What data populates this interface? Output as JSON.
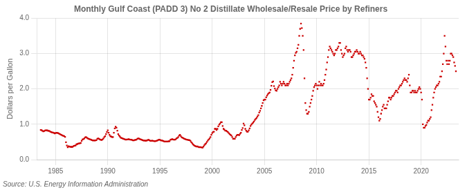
{
  "chart_data": {
    "type": "scatter",
    "title": "Monthly Gulf Coast (PADD 3) No 2 Distillate Wholesale/Resale Price by Refiners",
    "y_label": "Dollars per Gallon",
    "annotation": "Source: U.S. Energy Information Administration",
    "color": "#cc0000",
    "marker": "square",
    "grid": true,
    "xlim": [
      1983.2,
      2023.6
    ],
    "xticks": [
      1985,
      1990,
      1995,
      2000,
      2005,
      2010,
      2015,
      2020
    ],
    "ylim": [
      0.0,
      4.0
    ],
    "yticks": [
      {
        "value": 0.0,
        "label": "0.0"
      },
      {
        "value": 1.0,
        "label": "1.0"
      },
      {
        "value": 2.0,
        "label": "2.0"
      },
      {
        "value": 3.0,
        "label": "3.0"
      },
      {
        "value": 4.0,
        "label": "4.0"
      }
    ],
    "x": [
      1983.583,
      1983.667,
      1983.75,
      1983.833,
      1983.917,
      1984.0,
      1984.083,
      1984.167,
      1984.25,
      1984.333,
      1984.417,
      1984.5,
      1984.583,
      1984.667,
      1984.75,
      1984.833,
      1984.917,
      1985.0,
      1985.083,
      1985.167,
      1985.25,
      1985.333,
      1985.417,
      1985.5,
      1985.583,
      1985.667,
      1985.75,
      1985.833,
      1985.917,
      1986.0,
      1986.083,
      1986.167,
      1986.25,
      1986.333,
      1986.417,
      1986.5,
      1986.583,
      1986.667,
      1986.75,
      1986.833,
      1986.917,
      1987.0,
      1987.083,
      1987.167,
      1987.25,
      1987.333,
      1987.417,
      1987.5,
      1987.583,
      1987.667,
      1987.75,
      1987.833,
      1987.917,
      1988.0,
      1988.083,
      1988.167,
      1988.25,
      1988.333,
      1988.417,
      1988.5,
      1988.583,
      1988.667,
      1988.75,
      1988.833,
      1988.917,
      1989.0,
      1989.083,
      1989.167,
      1989.25,
      1989.333,
      1989.417,
      1989.5,
      1989.583,
      1989.667,
      1989.75,
      1989.833,
      1989.917,
      1990.0,
      1990.083,
      1990.167,
      1990.25,
      1990.333,
      1990.417,
      1990.5,
      1990.583,
      1990.667,
      1990.75,
      1990.833,
      1990.917,
      1991.0,
      1991.083,
      1991.167,
      1991.25,
      1991.333,
      1991.417,
      1991.5,
      1991.583,
      1991.667,
      1991.75,
      1991.833,
      1991.917,
      1992.0,
      1992.083,
      1992.167,
      1992.25,
      1992.333,
      1992.417,
      1992.5,
      1992.583,
      1992.667,
      1992.75,
      1992.833,
      1992.917,
      1993.0,
      1993.083,
      1993.167,
      1993.25,
      1993.333,
      1993.417,
      1993.5,
      1993.583,
      1993.667,
      1993.75,
      1993.833,
      1993.917,
      1994.0,
      1994.083,
      1994.167,
      1994.25,
      1994.333,
      1994.417,
      1994.5,
      1994.583,
      1994.667,
      1994.75,
      1994.833,
      1994.917,
      1995.0,
      1995.083,
      1995.167,
      1995.25,
      1995.333,
      1995.417,
      1995.5,
      1995.583,
      1995.667,
      1995.75,
      1995.833,
      1995.917,
      1996.0,
      1996.083,
      1996.167,
      1996.25,
      1996.333,
      1996.417,
      1996.5,
      1996.583,
      1996.667,
      1996.75,
      1996.833,
      1996.917,
      1997.0,
      1997.083,
      1997.167,
      1997.25,
      1997.333,
      1997.417,
      1997.5,
      1997.583,
      1997.667,
      1997.75,
      1997.833,
      1997.917,
      1998.0,
      1998.083,
      1998.167,
      1998.25,
      1998.333,
      1998.417,
      1998.5,
      1998.583,
      1998.667,
      1998.75,
      1998.833,
      1998.917,
      1999.0,
      1999.083,
      1999.167,
      1999.25,
      1999.333,
      1999.417,
      1999.5,
      1999.583,
      1999.667,
      1999.75,
      1999.833,
      1999.917,
      2000.0,
      2000.083,
      2000.167,
      2000.25,
      2000.333,
      2000.417,
      2000.5,
      2000.583,
      2000.667,
      2000.75,
      2000.833,
      2000.917,
      2001.0,
      2001.083,
      2001.167,
      2001.25,
      2001.333,
      2001.417,
      2001.5,
      2001.583,
      2001.667,
      2001.75,
      2001.833,
      2001.917,
      2002.0,
      2002.083,
      2002.167,
      2002.25,
      2002.333,
      2002.417,
      2002.5,
      2002.583,
      2002.667,
      2002.75,
      2002.833,
      2002.917,
      2003.0,
      2003.083,
      2003.167,
      2003.25,
      2003.333,
      2003.417,
      2003.5,
      2003.583,
      2003.667,
      2003.75,
      2003.833,
      2003.917,
      2004.0,
      2004.083,
      2004.167,
      2004.25,
      2004.333,
      2004.417,
      2004.5,
      2004.583,
      2004.667,
      2004.75,
      2004.833,
      2004.917,
      2005.0,
      2005.083,
      2005.167,
      2005.25,
      2005.333,
      2005.417,
      2005.5,
      2005.583,
      2005.667,
      2005.75,
      2005.833,
      2005.917,
      2006.0,
      2006.083,
      2006.167,
      2006.25,
      2006.333,
      2006.417,
      2006.5,
      2006.583,
      2006.667,
      2006.75,
      2006.833,
      2006.917,
      2007.0,
      2007.083,
      2007.167,
      2007.25,
      2007.333,
      2007.417,
      2007.5,
      2007.583,
      2007.667,
      2007.75,
      2007.833,
      2007.917,
      2008.0,
      2008.083,
      2008.167,
      2008.25,
      2008.333,
      2008.417,
      2008.5,
      2008.583,
      2008.667,
      2008.75,
      2008.833,
      2008.917,
      2009.0,
      2009.083,
      2009.167,
      2009.25,
      2009.333,
      2009.417,
      2009.5,
      2009.583,
      2009.667,
      2009.75,
      2009.833,
      2009.917,
      2010.0,
      2010.083,
      2010.167,
      2010.25,
      2010.333,
      2010.417,
      2010.5,
      2010.583,
      2010.667,
      2010.75,
      2010.833,
      2010.917,
      2011.0,
      2011.083,
      2011.167,
      2011.25,
      2011.333,
      2011.417,
      2011.5,
      2011.583,
      2011.667,
      2011.75,
      2011.833,
      2011.917,
      2012.0,
      2012.083,
      2012.167,
      2012.25,
      2012.333,
      2012.417,
      2012.5,
      2012.583,
      2012.667,
      2012.75,
      2012.833,
      2012.917,
      2013.0,
      2013.083,
      2013.167,
      2013.25,
      2013.333,
      2013.417,
      2013.5,
      2013.583,
      2013.667,
      2013.75,
      2013.833,
      2013.917,
      2014.0,
      2014.083,
      2014.167,
      2014.25,
      2014.333,
      2014.417,
      2014.5,
      2014.583,
      2014.667,
      2014.75,
      2014.833,
      2014.917,
      2015.0,
      2015.083,
      2015.167,
      2015.25,
      2015.333,
      2015.417,
      2015.5,
      2015.583,
      2015.667,
      2015.75,
      2015.833,
      2015.917,
      2016.0,
      2016.083,
      2016.167,
      2016.25,
      2016.333,
      2016.417,
      2016.5,
      2016.583,
      2016.667,
      2016.75,
      2016.833,
      2016.917,
      2017.0,
      2017.083,
      2017.167,
      2017.25,
      2017.333,
      2017.417,
      2017.5,
      2017.583,
      2017.667,
      2017.75,
      2017.833,
      2017.917,
      2018.0,
      2018.083,
      2018.167,
      2018.25,
      2018.333,
      2018.417,
      2018.5,
      2018.583,
      2018.667,
      2018.75,
      2018.833,
      2018.917,
      2019.0,
      2019.083,
      2019.167,
      2019.25,
      2019.333,
      2019.417,
      2019.5,
      2019.583,
      2019.667,
      2019.75,
      2019.833,
      2019.917,
      2020.0,
      2020.083,
      2020.167,
      2020.25,
      2020.333,
      2020.417,
      2020.5,
      2020.583,
      2020.667,
      2020.75,
      2020.833,
      2020.917,
      2021.0,
      2021.083,
      2021.167,
      2021.25,
      2021.333,
      2021.417,
      2021.5,
      2021.583,
      2021.667,
      2021.75,
      2021.833,
      2021.917,
      2022.0,
      2022.083,
      2022.167,
      2022.25,
      2022.333,
      2022.417,
      2022.5,
      2022.583,
      2022.667,
      2022.75,
      2022.833,
      2022.917,
      2023.0,
      2023.083,
      2023.167,
      2023.25,
      2023.333
    ],
    "values": [
      0.836,
      0.834,
      0.816,
      0.801,
      0.81,
      0.825,
      0.826,
      0.826,
      0.821,
      0.813,
      0.808,
      0.79,
      0.78,
      0.772,
      0.763,
      0.755,
      0.743,
      0.75,
      0.76,
      0.755,
      0.748,
      0.737,
      0.72,
      0.705,
      0.695,
      0.68,
      0.672,
      0.66,
      0.645,
      0.49,
      0.4,
      0.35,
      0.38,
      0.37,
      0.36,
      0.365,
      0.355,
      0.37,
      0.39,
      0.395,
      0.4,
      0.43,
      0.44,
      0.45,
      0.455,
      0.46,
      0.47,
      0.53,
      0.57,
      0.58,
      0.6,
      0.63,
      0.64,
      0.62,
      0.6,
      0.59,
      0.58,
      0.57,
      0.56,
      0.55,
      0.54,
      0.545,
      0.54,
      0.545,
      0.55,
      0.59,
      0.6,
      0.59,
      0.57,
      0.56,
      0.555,
      0.57,
      0.6,
      0.64,
      0.66,
      0.72,
      0.78,
      0.83,
      0.76,
      0.7,
      0.66,
      0.65,
      0.64,
      0.64,
      0.76,
      0.88,
      0.93,
      0.9,
      0.82,
      0.72,
      0.68,
      0.65,
      0.62,
      0.61,
      0.6,
      0.59,
      0.58,
      0.57,
      0.565,
      0.57,
      0.57,
      0.58,
      0.57,
      0.565,
      0.565,
      0.555,
      0.545,
      0.545,
      0.555,
      0.56,
      0.565,
      0.59,
      0.6,
      0.595,
      0.58,
      0.57,
      0.56,
      0.55,
      0.54,
      0.54,
      0.535,
      0.535,
      0.54,
      0.555,
      0.56,
      0.545,
      0.53,
      0.53,
      0.535,
      0.53,
      0.525,
      0.52,
      0.525,
      0.53,
      0.54,
      0.555,
      0.565,
      0.56,
      0.545,
      0.54,
      0.535,
      0.525,
      0.51,
      0.51,
      0.51,
      0.51,
      0.51,
      0.52,
      0.52,
      0.56,
      0.57,
      0.58,
      0.57,
      0.565,
      0.565,
      0.575,
      0.6,
      0.615,
      0.64,
      0.68,
      0.7,
      0.66,
      0.63,
      0.62,
      0.605,
      0.59,
      0.58,
      0.57,
      0.565,
      0.56,
      0.55,
      0.55,
      0.53,
      0.49,
      0.46,
      0.43,
      0.41,
      0.39,
      0.38,
      0.37,
      0.375,
      0.36,
      0.35,
      0.355,
      0.35,
      0.345,
      0.34,
      0.37,
      0.41,
      0.44,
      0.46,
      0.5,
      0.54,
      0.57,
      0.6,
      0.64,
      0.7,
      0.75,
      0.78,
      0.79,
      0.87,
      0.87,
      0.84,
      0.87,
      0.94,
      0.99,
      1.02,
      1.06,
      1.06,
      0.95,
      0.87,
      0.85,
      0.82,
      0.82,
      0.8,
      0.78,
      0.75,
      0.72,
      0.7,
      0.68,
      0.64,
      0.59,
      0.59,
      0.59,
      0.64,
      0.68,
      0.7,
      0.7,
      0.69,
      0.73,
      0.76,
      0.84,
      0.89,
      1.02,
      0.97,
      0.87,
      0.82,
      0.79,
      0.79,
      0.83,
      0.88,
      0.95,
      0.99,
      1.02,
      1.05,
      1.08,
      1.12,
      1.15,
      1.18,
      1.22,
      1.26,
      1.33,
      1.38,
      1.45,
      1.52,
      1.6,
      1.68,
      1.7,
      1.7,
      1.76,
      1.81,
      1.85,
      1.88,
      1.9,
      1.97,
      2.09,
      2.19,
      2.21,
      2.08,
      2.01,
      1.96,
      1.95,
      2.0,
      2.05,
      2.1,
      2.2,
      2.15,
      2.1,
      2.15,
      2.2,
      2.15,
      2.1,
      2.1,
      2.15,
      2.1,
      2.15,
      2.2,
      2.25,
      2.3,
      2.4,
      2.6,
      2.8,
      2.95,
      3.02,
      3.05,
      3.15,
      3.25,
      3.5,
      3.7,
      3.85,
      3.72,
      3.5,
      3.1,
      2.3,
      1.6,
      1.4,
      1.3,
      1.3,
      1.35,
      1.5,
      1.6,
      1.7,
      1.8,
      1.95,
      2.05,
      2.1,
      2.15,
      2.1,
      2.0,
      2.1,
      2.2,
      2.1,
      2.15,
      2.1,
      2.1,
      2.15,
      2.25,
      2.4,
      2.55,
      2.75,
      2.9,
      3.1,
      3.2,
      3.15,
      3.1,
      3.05,
      3.0,
      2.95,
      3.0,
      3.1,
      3.1,
      3.15,
      3.2,
      3.3,
      3.3,
      3.1,
      3.0,
      2.9,
      2.95,
      3.0,
      3.15,
      3.2,
      3.1,
      3.05,
      3.1,
      3.1,
      3.05,
      2.9,
      2.9,
      2.95,
      3.0,
      3.05,
      3.05,
      3.1,
      3.05,
      3.0,
      3.0,
      3.05,
      3.0,
      2.95,
      2.95,
      2.9,
      2.85,
      2.75,
      2.6,
      2.3,
      2.0,
      1.7,
      1.7,
      1.75,
      1.85,
      1.8,
      1.8,
      1.65,
      1.6,
      1.55,
      1.5,
      1.35,
      1.2,
      1.1,
      1.15,
      1.3,
      1.4,
      1.5,
      1.55,
      1.45,
      1.45,
      1.45,
      1.55,
      1.65,
      1.75,
      1.75,
      1.7,
      1.75,
      1.8,
      1.8,
      1.85,
      1.9,
      1.95,
      1.95,
      1.9,
      2.0,
      2.05,
      2.1,
      2.1,
      2.15,
      2.2,
      2.25,
      2.3,
      2.25,
      2.25,
      2.2,
      2.3,
      2.4,
      2.1,
      1.9,
      1.9,
      1.95,
      1.95,
      1.9,
      1.95,
      1.9,
      1.9,
      1.95,
      2.0,
      2.05,
      2.0,
      1.9,
      1.7,
      1.0,
      0.9,
      0.9,
      0.95,
      0.98,
      1.05,
      1.1,
      1.1,
      1.15,
      1.2,
      1.4,
      1.55,
      1.75,
      1.9,
      2.0,
      2.05,
      2.1,
      2.1,
      2.15,
      2.2,
      2.35,
      2.35,
      2.5,
      2.7,
      3.0,
      3.5,
      3.2,
      2.8,
      2.7,
      2.8,
      2.7,
      2.8,
      3.0,
      3.0,
      2.95,
      2.9,
      2.75,
      2.65,
      2.5
    ]
  }
}
